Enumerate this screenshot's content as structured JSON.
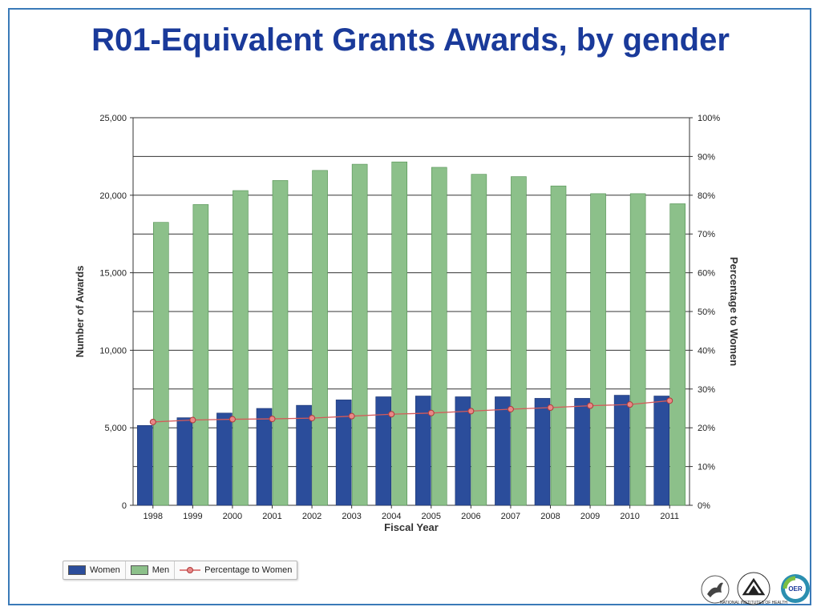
{
  "slide": {
    "title": "R01-Equivalent Grants Awards, by gender"
  },
  "chart_data": {
    "type": "bar",
    "categories": [
      "1998",
      "1999",
      "2000",
      "2001",
      "2002",
      "2003",
      "2004",
      "2005",
      "2006",
      "2007",
      "2008",
      "2009",
      "2010",
      "2011"
    ],
    "series": [
      {
        "name": "Women",
        "kind": "bar",
        "axis": "left",
        "color": "#2b4d9b",
        "values": [
          5150,
          5650,
          5950,
          6250,
          6450,
          6800,
          7000,
          7050,
          7000,
          7000,
          6900,
          6900,
          7100,
          7050
        ]
      },
      {
        "name": "Men",
        "kind": "bar",
        "axis": "left",
        "color": "#8cc08a",
        "values": [
          18250,
          19400,
          20300,
          20950,
          21600,
          22000,
          22150,
          21800,
          21350,
          21200,
          20600,
          20100,
          20100,
          19450
        ]
      },
      {
        "name": "Percentage to Women",
        "kind": "line",
        "axis": "right",
        "color": "#d45a5a",
        "values": [
          21.5,
          22.0,
          22.2,
          22.3,
          22.5,
          23.0,
          23.5,
          23.8,
          24.3,
          24.8,
          25.2,
          25.7,
          26.0,
          27.0
        ]
      }
    ],
    "xlabel": "Fiscal Year",
    "ylabel": "Number of Awards",
    "y2label": "Percentage to Women",
    "ylim": [
      0,
      25000
    ],
    "y2lim": [
      0,
      100
    ],
    "yticks": [
      "0",
      "5,000",
      "10,000",
      "15,000",
      "20,000",
      "25,000"
    ],
    "y2ticks": [
      "0%",
      "10%",
      "20%",
      "30%",
      "40%",
      "50%",
      "60%",
      "70%",
      "80%",
      "90%",
      "100%"
    ],
    "grid": true,
    "legend": "bottom-left"
  },
  "legend": {
    "items": [
      {
        "label": "Women",
        "color": "#2b4d9b"
      },
      {
        "label": "Men",
        "color": "#8cc08a"
      },
      {
        "label": "Percentage to Women",
        "color": "#d45a5a"
      }
    ]
  },
  "logos": {
    "items": [
      "hhs-eagle-logo",
      "nih-logo",
      "oer-logo"
    ],
    "nih_text": "NATIONAL INSTITUTES OF HEALTH",
    "oer_text": "OER"
  }
}
